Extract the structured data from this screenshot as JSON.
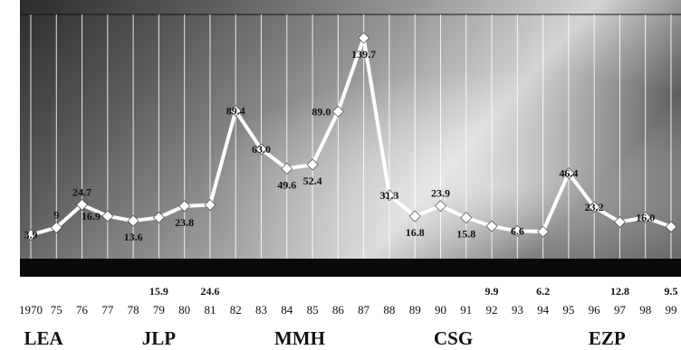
{
  "chart_data": {
    "type": "line",
    "title": "",
    "xlabel": "",
    "ylabel": "",
    "ylim": [
      0,
      150
    ],
    "grid": true,
    "categories": [
      "1970",
      "75",
      "76",
      "77",
      "78",
      "79",
      "80",
      "81",
      "82",
      "83",
      "84",
      "85",
      "86",
      "87",
      "88",
      "89",
      "90",
      "91",
      "92",
      "93",
      "94",
      "95",
      "96",
      "97",
      "98",
      "99"
    ],
    "series": [
      {
        "values": [
          3.9,
          9.0,
          24.7,
          16.9,
          13.6,
          15.9,
          23.8,
          24.6,
          89.4,
          63.0,
          49.6,
          52.4,
          89.0,
          139.7,
          31.3,
          16.8,
          23.9,
          15.8,
          9.9,
          6.6,
          6.2,
          46.4,
          23.2,
          12.8,
          16.0,
          9.5
        ]
      }
    ],
    "data_labels": [
      {
        "i": 0,
        "text": "3.9",
        "pos": "on"
      },
      {
        "i": 1,
        "text": "9",
        "pos": "above"
      },
      {
        "i": 2,
        "text": "24.7",
        "pos": "above"
      },
      {
        "i": 3,
        "text": "16.9",
        "pos": "left"
      },
      {
        "i": 4,
        "text": "13.6",
        "pos": "below"
      },
      {
        "i": 5,
        "text": "15.9",
        "pos": "axis"
      },
      {
        "i": 6,
        "text": "23.8",
        "pos": "below"
      },
      {
        "i": 7,
        "text": "24.6",
        "pos": "axis"
      },
      {
        "i": 8,
        "text": "89.4",
        "pos": "on"
      },
      {
        "i": 9,
        "text": "63.0",
        "pos": "on"
      },
      {
        "i": 10,
        "text": "49.6",
        "pos": "below"
      },
      {
        "i": 11,
        "text": "52.4",
        "pos": "below"
      },
      {
        "i": 12,
        "text": "89.0",
        "pos": "left"
      },
      {
        "i": 13,
        "text": "139.7",
        "pos": "below"
      },
      {
        "i": 14,
        "text": "31.3",
        "pos": "on"
      },
      {
        "i": 15,
        "text": "16.8",
        "pos": "below"
      },
      {
        "i": 16,
        "text": "23.9",
        "pos": "above"
      },
      {
        "i": 17,
        "text": "15.8",
        "pos": "below"
      },
      {
        "i": 18,
        "text": "9.9",
        "pos": "axis"
      },
      {
        "i": 19,
        "text": "6.6",
        "pos": "on"
      },
      {
        "i": 20,
        "text": "6.2",
        "pos": "axis"
      },
      {
        "i": 21,
        "text": "46.4",
        "pos": "on"
      },
      {
        "i": 22,
        "text": "23.2",
        "pos": "on"
      },
      {
        "i": 23,
        "text": "12.8",
        "pos": "axis"
      },
      {
        "i": 24,
        "text": "16.0",
        "pos": "on"
      },
      {
        "i": 25,
        "text": "9.5",
        "pos": "axis"
      }
    ],
    "periods": [
      {
        "label": "LEA",
        "from": 0,
        "to": 1
      },
      {
        "label": "JLP",
        "from": 4,
        "to": 6
      },
      {
        "label": "MMH",
        "from": 10,
        "to": 11
      },
      {
        "label": "CSG",
        "from": 16,
        "to": 17
      },
      {
        "label": "EZP",
        "from": 22,
        "to": 23
      }
    ],
    "colors": {
      "line": "#ffffff",
      "marker": "#ffffff",
      "grid": "#ffffff",
      "band": "#0a0a0a",
      "text": "#111111"
    }
  }
}
